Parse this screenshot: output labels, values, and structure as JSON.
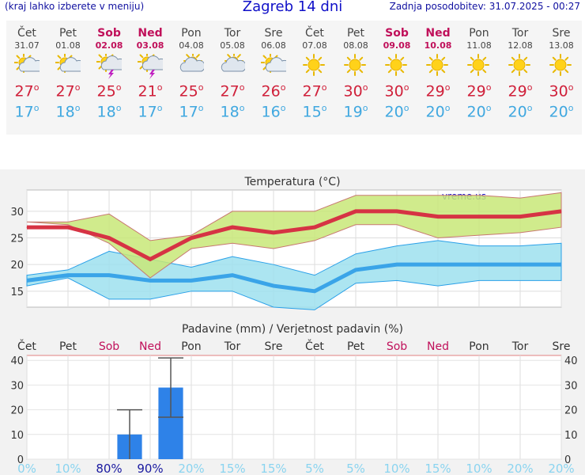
{
  "header": {
    "menu_hint": "(kraj lahko izberete v meniju)",
    "title": "Zagreb 14 dni",
    "updated": "Zadnja posodobitev: 31.07.2025 - 00:27"
  },
  "colors": {
    "max": "#d0203a",
    "min": "#40a8e0",
    "weekend": "#c0105a",
    "bar": "#2e82e8"
  },
  "days": [
    {
      "name": "Čet",
      "date": "31.07",
      "icon": "sun-cloud-icon",
      "max": "27",
      "min": "17",
      "weekend": false
    },
    {
      "name": "Pet",
      "date": "01.08",
      "icon": "sun-cloud-icon",
      "max": "27",
      "min": "18",
      "weekend": false
    },
    {
      "name": "Sob",
      "date": "02.08",
      "icon": "thunderstorm-icon",
      "max": "25",
      "min": "18",
      "weekend": true
    },
    {
      "name": "Ned",
      "date": "03.08",
      "icon": "thunderstorm-icon",
      "max": "21",
      "min": "17",
      "weekend": true
    },
    {
      "name": "Pon",
      "date": "04.08",
      "icon": "partly-cloudy-icon",
      "max": "25",
      "min": "17",
      "weekend": false
    },
    {
      "name": "Tor",
      "date": "05.08",
      "icon": "partly-cloudy-icon",
      "max": "27",
      "min": "18",
      "weekend": false
    },
    {
      "name": "Sre",
      "date": "06.08",
      "icon": "sun-cloud-icon",
      "max": "26",
      "min": "16",
      "weekend": false
    },
    {
      "name": "Čet",
      "date": "07.08",
      "icon": "sun-icon",
      "max": "27",
      "min": "15",
      "weekend": false
    },
    {
      "name": "Pet",
      "date": "08.08",
      "icon": "sun-icon",
      "max": "30",
      "min": "19",
      "weekend": false
    },
    {
      "name": "Sob",
      "date": "09.08",
      "icon": "sun-icon",
      "max": "30",
      "min": "20",
      "weekend": true
    },
    {
      "name": "Ned",
      "date": "10.08",
      "icon": "sun-icon",
      "max": "29",
      "min": "20",
      "weekend": true
    },
    {
      "name": "Pon",
      "date": "11.08",
      "icon": "sun-icon",
      "max": "29",
      "min": "20",
      "weekend": false
    },
    {
      "name": "Tor",
      "date": "12.08",
      "icon": "sun-icon",
      "max": "29",
      "min": "20",
      "weekend": false
    },
    {
      "name": "Sre",
      "date": "13.08",
      "icon": "sun-icon",
      "max": "30",
      "min": "20",
      "weekend": false
    }
  ],
  "chart_data": [
    {
      "type": "line",
      "title": "Temperatura (°C)",
      "watermark": "vreme.us",
      "ylim": [
        12,
        34
      ],
      "yticks": [
        15,
        20,
        25,
        30
      ],
      "grid": true,
      "series": [
        {
          "name": "max",
          "values": [
            27,
            27,
            25,
            21,
            25,
            27,
            26,
            27,
            30,
            30,
            29,
            29,
            29,
            30
          ],
          "band": [
            [
              28,
              28
            ],
            [
              27.5,
              28
            ],
            [
              24,
              29.5
            ],
            [
              17.5,
              24.5
            ],
            [
              23,
              25.5
            ],
            [
              24,
              30
            ],
            [
              23,
              30
            ],
            [
              24.5,
              30
            ],
            [
              27.5,
              33
            ],
            [
              27.5,
              33
            ],
            [
              25,
              33
            ],
            [
              25.5,
              33
            ],
            [
              26,
              32.5
            ],
            [
              27,
              33.5
            ]
          ]
        },
        {
          "name": "min",
          "values": [
            17,
            18,
            18,
            17,
            17,
            18,
            16,
            15,
            19,
            20,
            20,
            20,
            20,
            20
          ],
          "band": [
            [
              16,
              18
            ],
            [
              17.5,
              19
            ],
            [
              13.5,
              22.5
            ],
            [
              13.5,
              21
            ],
            [
              15,
              19.5
            ],
            [
              15,
              21.5
            ],
            [
              12,
              20
            ],
            [
              11.5,
              18
            ],
            [
              16.5,
              22
            ],
            [
              17,
              23.5
            ],
            [
              16,
              24.5
            ],
            [
              17,
              23.5
            ],
            [
              17,
              23.5
            ],
            [
              17,
              24
            ]
          ]
        }
      ]
    },
    {
      "type": "bar",
      "title": "Padavine (mm) / Verjetnost padavin (%)",
      "ylim": [
        0,
        42
      ],
      "yticks": [
        0,
        10,
        20,
        30,
        40
      ],
      "categories": [
        "Čet",
        "Pet",
        "Sob",
        "Ned",
        "Pon",
        "Tor",
        "Sre",
        "Čet",
        "Pet",
        "Sob",
        "Ned",
        "Pon",
        "Tor",
        "Sre"
      ],
      "weekend": [
        false,
        false,
        true,
        true,
        false,
        false,
        false,
        false,
        false,
        true,
        true,
        false,
        false,
        false
      ],
      "values": [
        0,
        0,
        10,
        29,
        0,
        0,
        0,
        0,
        0,
        0,
        0,
        0,
        0,
        0
      ],
      "errors": [
        null,
        null,
        [
          0,
          20
        ],
        [
          17,
          41
        ],
        null,
        null,
        null,
        null,
        null,
        null,
        null,
        null,
        null,
        null
      ],
      "probability": [
        "0%",
        "10%",
        "80%",
        "90%",
        "20%",
        "15%",
        "15%",
        "5%",
        "5%",
        "10%",
        "15%",
        "10%",
        "20%",
        "20%"
      ]
    }
  ]
}
